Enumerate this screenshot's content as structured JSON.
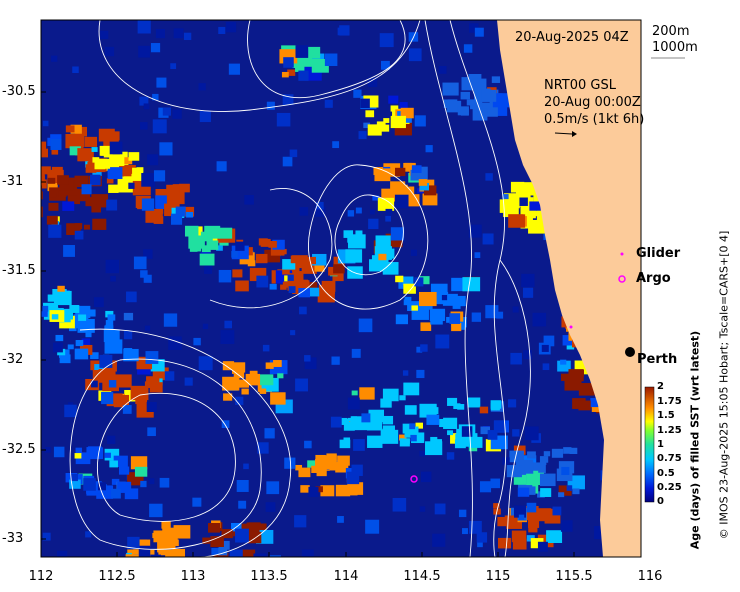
{
  "header": {
    "date_label": "20-Aug-2025 04Z",
    "contour_200": "200m",
    "contour_1000": "1000m"
  },
  "currents": {
    "source": "NRT00 GSL",
    "time": "20-Aug 00:00Z",
    "scale": "0.5m/s (1kt 6h)"
  },
  "legend": {
    "glider": "Glider",
    "argo": "Argo",
    "glider_color": "#ff00ff",
    "argo_color": "#ff00ff"
  },
  "places": {
    "perth": "Perth"
  },
  "axes": {
    "x_ticks": [
      "112",
      "112.5",
      "113",
      "113.5",
      "114",
      "114.5",
      "115",
      "115.5",
      "116"
    ],
    "y_ticks": [
      "-30.5",
      "-31",
      "-31.5",
      "-32",
      "-32.5",
      "-33"
    ],
    "x_range": [
      112,
      116.1
    ],
    "y_range": [
      -33.1,
      -30.0
    ]
  },
  "colorbar": {
    "title": "Age (days) of filled SST (wrt latest)",
    "ticks": [
      "2",
      "1.75",
      "1.5",
      "1.25",
      "1",
      "0.75",
      "0.5",
      "0.25",
      "0"
    ],
    "range": [
      0,
      2
    ]
  },
  "credit": "© IMOS 23-Aug-2025 15:05 Hobart; Tscale=CARS+[0 4]",
  "colors": {
    "land": "#fccb9a",
    "ocean_base": "#0a1a8c",
    "contour": "#ffffff"
  }
}
